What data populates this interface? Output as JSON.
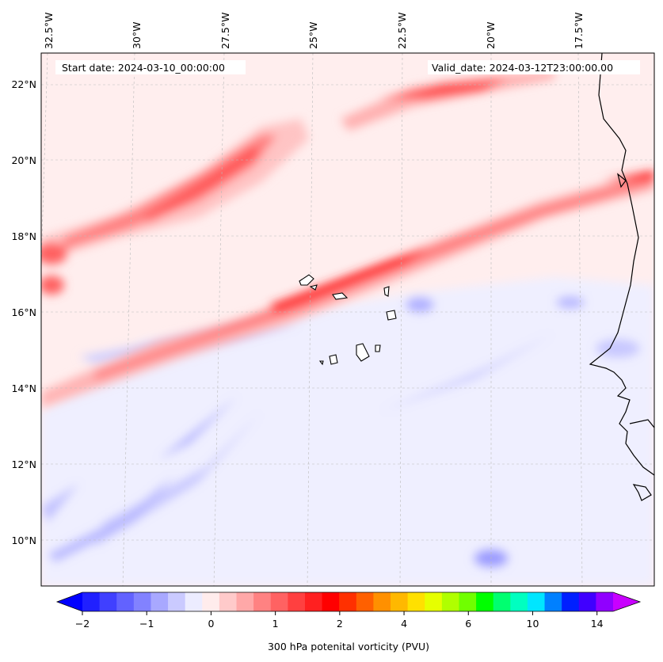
{
  "header": {
    "start_date": "Start date: 2024-03-10_00:00:00",
    "valid_date": "Valid_date: 2024-03-12T23:00:00.00"
  },
  "map": {
    "top_longitude_labels": [
      "32.5°W",
      "30°W",
      "27.5°W",
      "25°W",
      "22.5°W",
      "20°W",
      "17.5°W"
    ],
    "left_latitude_labels": [
      "22°N",
      "20°N",
      "18°N",
      "16°N",
      "14°N",
      "12°N",
      "10°N"
    ]
  },
  "colorbar": {
    "label": "300 hPa potenital vorticity (PVU)",
    "tick_labels": [
      "−2",
      "−1",
      "0",
      "1",
      "2",
      "4",
      "6",
      "10",
      "14"
    ],
    "colors": [
      "#0000ff",
      "#2020ff",
      "#4040ff",
      "#6262ff",
      "#8282ff",
      "#a8a8ff",
      "#cacaff",
      "#ececff",
      "#ffecec",
      "#ffcaca",
      "#ffa8a8",
      "#ff8282",
      "#ff6262",
      "#ff4040",
      "#ff2020",
      "#ff0000",
      "#ff3000",
      "#ff6000",
      "#ff9000",
      "#ffb800",
      "#ffe000",
      "#e6ff00",
      "#b0ff00",
      "#70ff00",
      "#00ff00",
      "#00ff70",
      "#00ffc0",
      "#00e6ff",
      "#0080ff",
      "#0020ff",
      "#4000ff",
      "#9000ff",
      "#c800ff"
    ]
  },
  "legend_icons": [
    "extend-min-arrow-icon",
    "extend-max-arrow-icon"
  ]
}
